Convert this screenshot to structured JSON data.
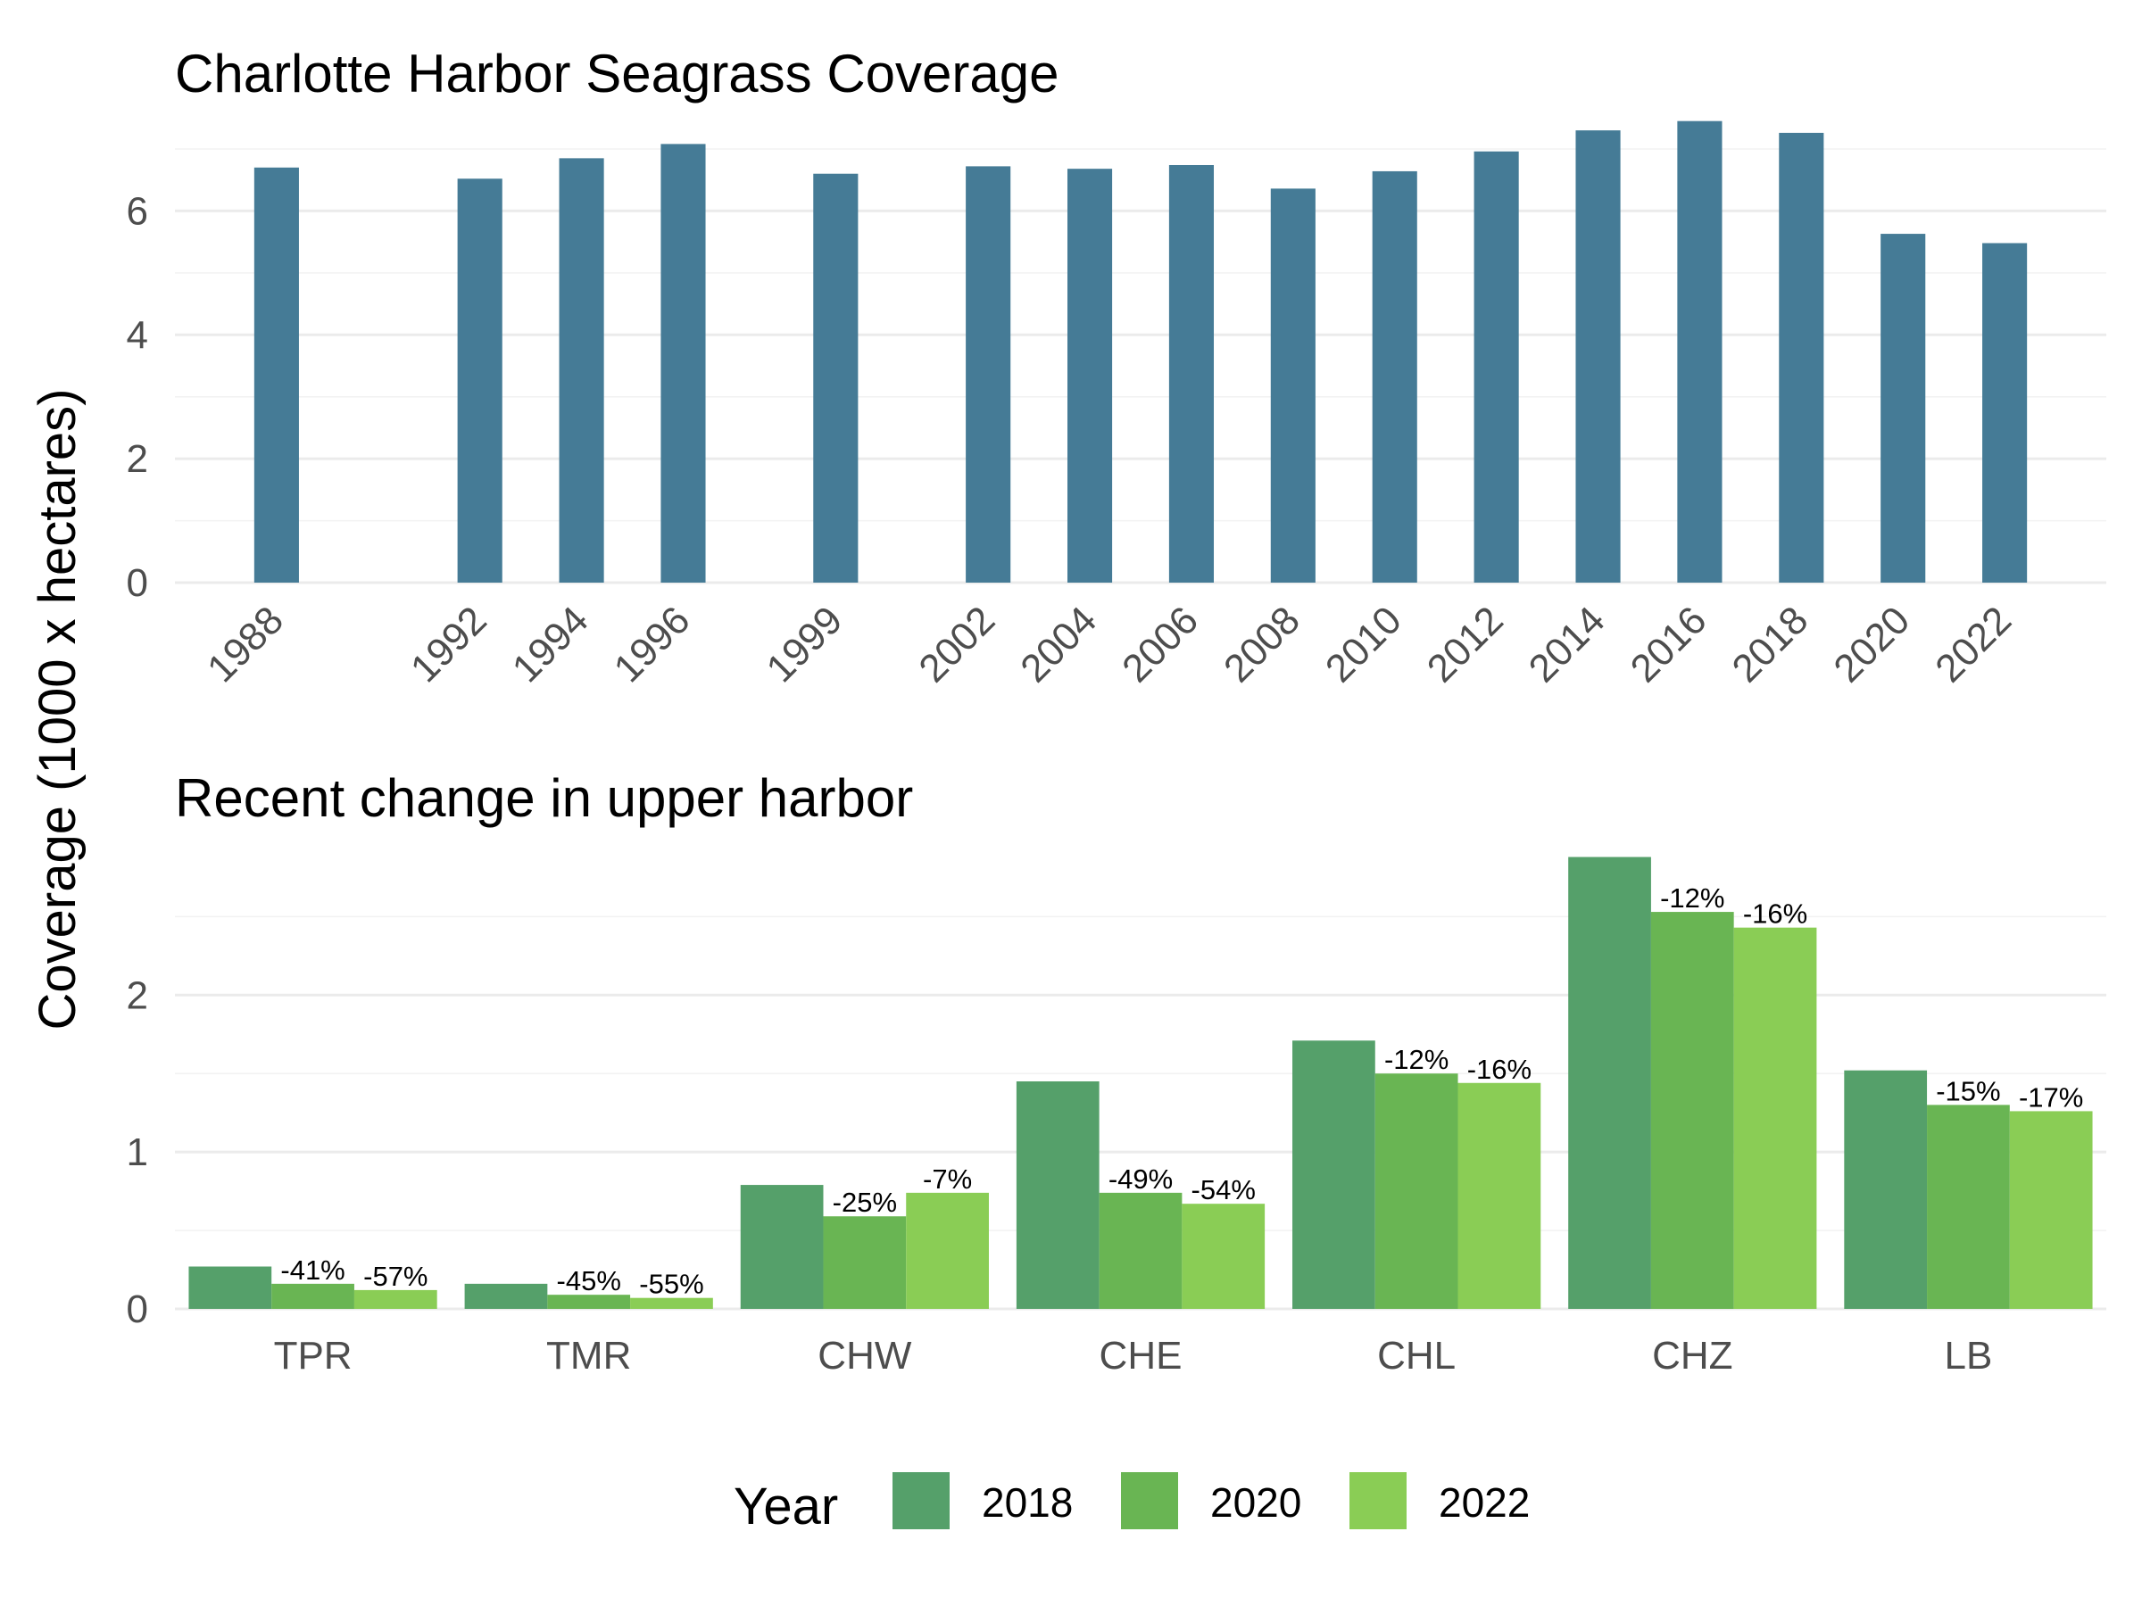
{
  "ylabel": "Coverage (1000 x hectares)",
  "legend": {
    "title": "Year",
    "position": "bottom"
  },
  "chart_data": [
    {
      "type": "bar",
      "title": "Charlotte Harbor Seagrass Coverage",
      "xlabel": "",
      "ylabel": "Coverage (1000 x hectares)",
      "x": [
        1988,
        1992,
        1994,
        1996,
        1999,
        2002,
        2004,
        2006,
        2008,
        2010,
        2012,
        2014,
        2016,
        2018,
        2020,
        2022
      ],
      "x_tick_labels": [
        "1988",
        "1992",
        "1994",
        "1996",
        "1999",
        "2002",
        "2004",
        "2006",
        "2008",
        "2010",
        "2012",
        "2014",
        "2016",
        "2018",
        "2020",
        "2022"
      ],
      "values": [
        6.7,
        6.52,
        6.85,
        7.08,
        6.6,
        6.72,
        6.68,
        6.74,
        6.36,
        6.64,
        6.96,
        7.3,
        7.45,
        7.26,
        5.63,
        5.48
      ],
      "xlim": [
        1986,
        2024
      ],
      "ylim": [
        0,
        7.1
      ],
      "y_ticks": [
        0,
        2,
        4,
        6
      ],
      "color": "#457b96",
      "grid": true
    },
    {
      "type": "bar",
      "title": "Recent change in upper harbor",
      "xlabel": "",
      "ylabel": "Coverage (1000 x hectares)",
      "categories": [
        "TPR",
        "TMR",
        "CHW",
        "CHE",
        "CHL",
        "CHZ",
        "LB"
      ],
      "series": [
        {
          "name": "2018",
          "color": "#55a06a",
          "values": [
            0.27,
            0.16,
            0.79,
            1.45,
            1.71,
            2.88,
            1.52
          ]
        },
        {
          "name": "2020",
          "color": "#69b553",
          "values": [
            0.16,
            0.09,
            0.59,
            0.74,
            1.5,
            2.53,
            1.3
          ]
        },
        {
          "name": "2022",
          "color": "#8acd55",
          "values": [
            0.12,
            0.07,
            0.74,
            0.67,
            1.44,
            2.43,
            1.26
          ]
        }
      ],
      "labels": {
        "2020": [
          "-41%",
          "-45%",
          "-25%",
          "-49%",
          "-12%",
          "-12%",
          "-15%"
        ],
        "2022": [
          "-57%",
          "-55%",
          "-7%",
          "-54%",
          "-16%",
          "-16%",
          "-17%"
        ]
      },
      "ylim": [
        0,
        2.9
      ],
      "y_ticks": [
        0,
        1,
        2
      ],
      "grid": true
    }
  ]
}
